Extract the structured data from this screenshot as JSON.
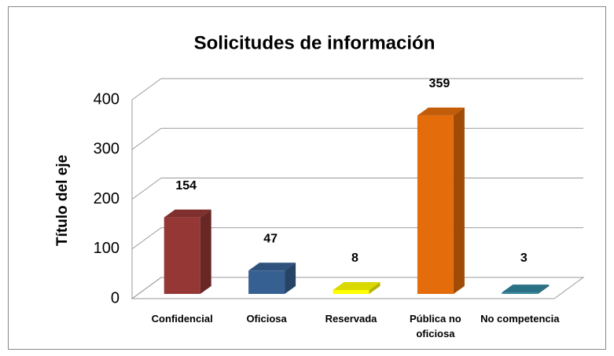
{
  "chart_data": {
    "type": "bar3d",
    "title": "Solicitudes de información",
    "y_axis_label": "Título del eje",
    "categories": [
      "Confidencial",
      "Oficiosa",
      "Reservada",
      "Pública no oficiosa",
      "No competencia"
    ],
    "values": [
      154,
      47,
      8,
      359,
      3
    ],
    "colors": [
      "#953735",
      "#376092",
      "#ffff00",
      "#e46c0a",
      "#31859c"
    ],
    "ylim": [
      0,
      400
    ],
    "yticks": [
      0,
      100,
      200,
      300,
      400
    ],
    "grid": true
  }
}
